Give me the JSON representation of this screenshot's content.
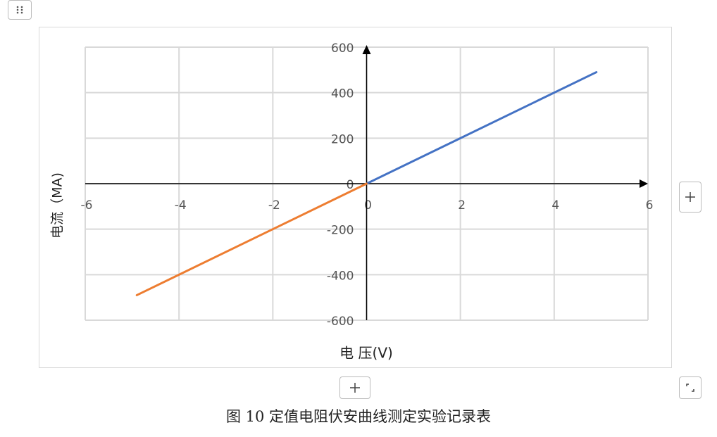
{
  "chart_data": {
    "type": "line",
    "x_label": "电 压(V)",
    "y_label": "电流（MA)",
    "xlim": [
      -6,
      6
    ],
    "xticks": [
      -6,
      -4,
      -2,
      0,
      2,
      4,
      6
    ],
    "ylim": [
      -600,
      600
    ],
    "yticks": [
      -600,
      -400,
      -200,
      0,
      200,
      400,
      600
    ],
    "grid": true,
    "series": [
      {
        "color": "#4472c4",
        "x": [
          0,
          4.9
        ],
        "values": [
          0,
          490
        ]
      },
      {
        "color": "#ed7d31",
        "x": [
          -4.9,
          0
        ],
        "values": [
          -490,
          0
        ]
      }
    ]
  },
  "caption": "图 10 定值电阻伏安曲线测定实验记录表"
}
